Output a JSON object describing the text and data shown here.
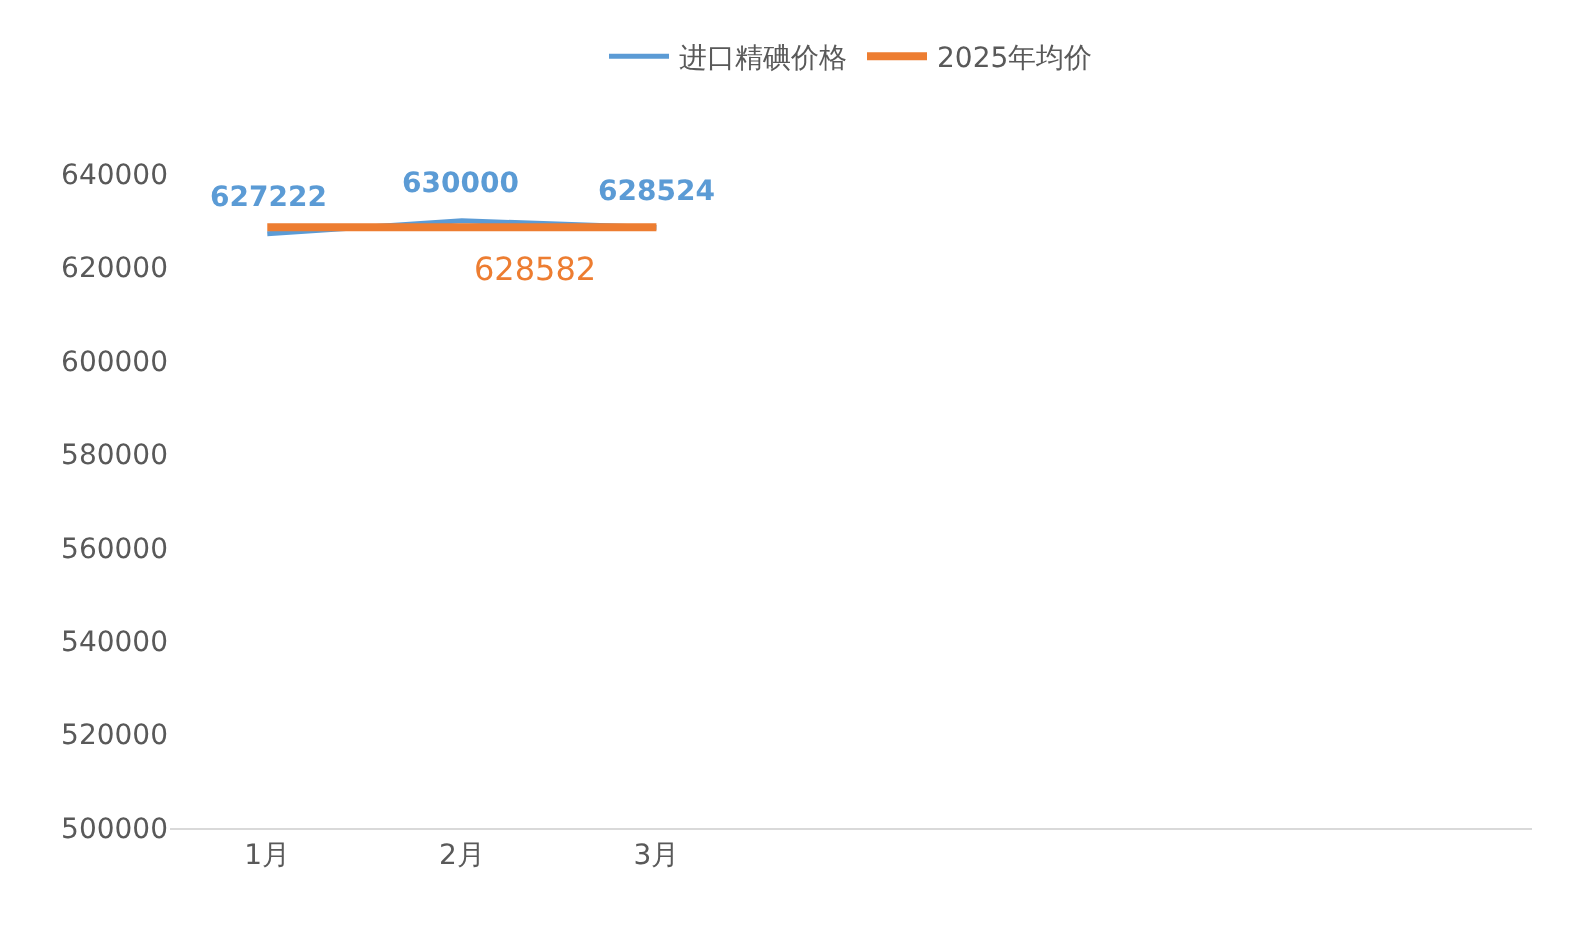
{
  "chart_data": {
    "type": "line",
    "categories": [
      "1月",
      "2月",
      "3月",
      null,
      null,
      null,
      null
    ],
    "series": [
      {
        "name": "进口精碘价格",
        "color": "#5b9bd5",
        "values": [
          627222,
          630000,
          628524,
          null,
          null,
          null,
          null
        ],
        "data_labels": true
      },
      {
        "name": "2025年均价",
        "color": "#ed7d31",
        "values": [
          628582,
          628582,
          628582,
          null,
          null,
          null,
          null
        ],
        "value_labels": [
          null,
          "628582",
          null,
          null,
          null,
          null,
          null
        ]
      }
    ],
    "ylim": [
      500000,
      640000
    ],
    "yticks": [
      500000,
      520000,
      540000,
      560000,
      580000,
      600000,
      620000,
      640000
    ],
    "legend": "top",
    "marker": "none",
    "line_style": "solid"
  }
}
